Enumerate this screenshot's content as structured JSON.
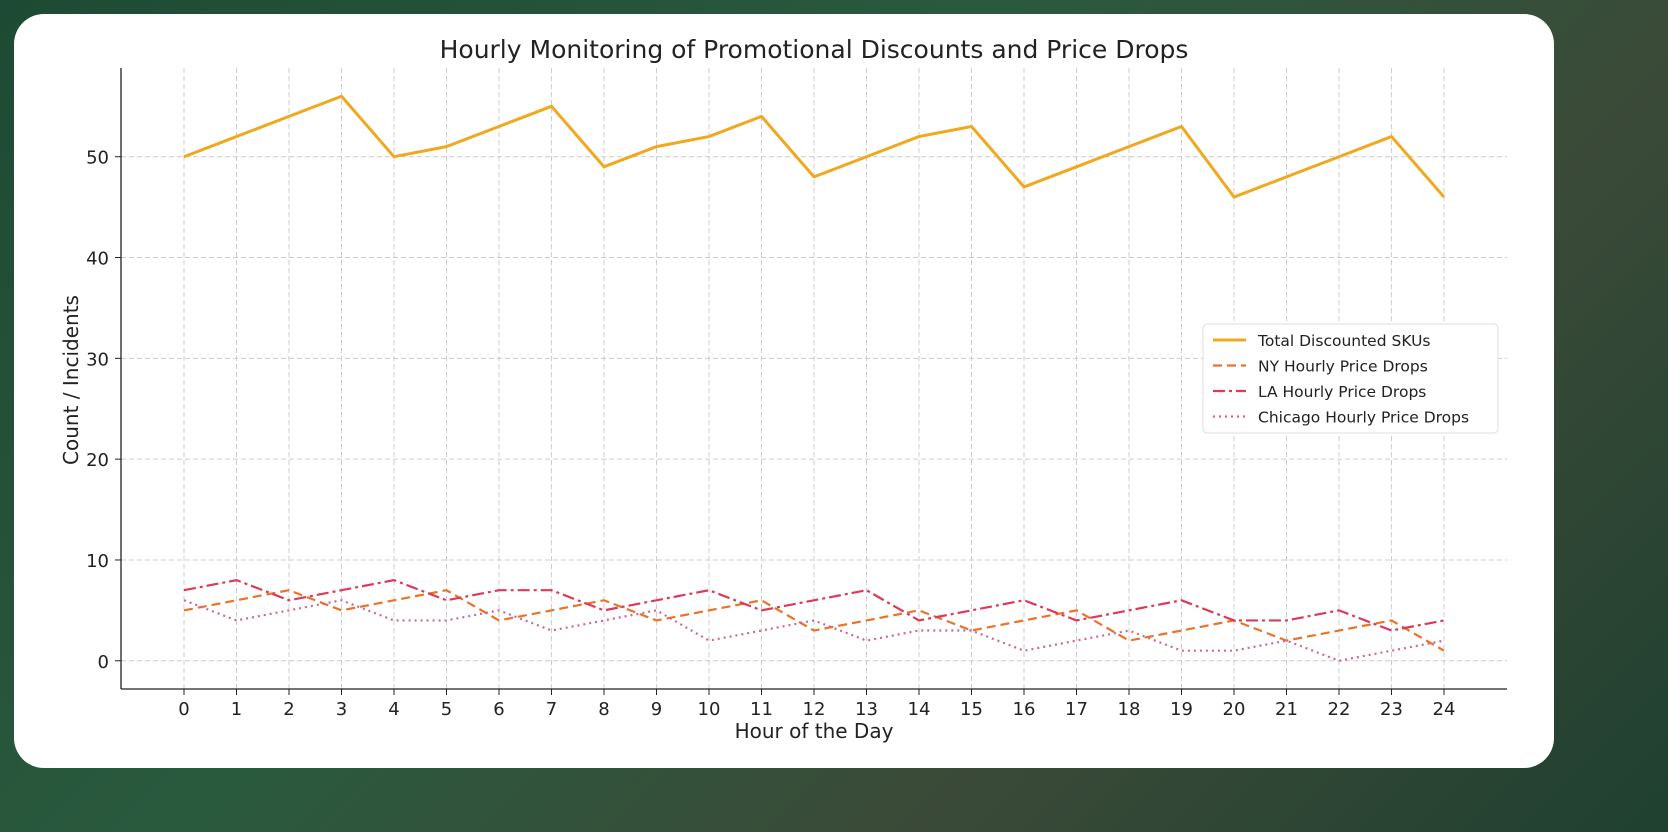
{
  "chart_data": {
    "type": "line",
    "title": "Hourly Monitoring of Promotional Discounts and Price Drops",
    "xlabel": "Hour of the Day",
    "ylabel": "Count / Incidents",
    "x": [
      0,
      1,
      2,
      3,
      4,
      5,
      6,
      7,
      8,
      9,
      10,
      11,
      12,
      13,
      14,
      15,
      16,
      17,
      18,
      19,
      20,
      21,
      22,
      23,
      24
    ],
    "xlim": [
      -1.2,
      25.2
    ],
    "ylim": [
      -2.8,
      58.8
    ],
    "yticks": [
      0,
      10,
      20,
      30,
      40,
      50
    ],
    "grid": true,
    "legend_position": "center-right",
    "series": [
      {
        "name": "Total Discounted SKUs",
        "color": "#f0a81e",
        "style": "solid",
        "values": [
          50,
          52,
          54,
          56,
          50,
          51,
          53,
          55,
          49,
          51,
          52,
          54,
          48,
          50,
          52,
          53,
          47,
          49,
          51,
          53,
          46,
          48,
          50,
          52,
          46
        ]
      },
      {
        "name": "NY Hourly Price Drops",
        "color": "#e8742a",
        "style": "dashed",
        "values": [
          5,
          6,
          7,
          5,
          6,
          7,
          4,
          5,
          6,
          4,
          5,
          6,
          3,
          4,
          5,
          3,
          4,
          5,
          2,
          3,
          4,
          2,
          3,
          4,
          1
        ]
      },
      {
        "name": "LA Hourly Price Drops",
        "color": "#dc3a5a",
        "style": "dashdot",
        "values": [
          7,
          8,
          6,
          7,
          8,
          6,
          7,
          7,
          5,
          6,
          7,
          5,
          6,
          7,
          4,
          5,
          6,
          4,
          5,
          6,
          4,
          4,
          5,
          3,
          4
        ]
      },
      {
        "name": "Chicago Hourly Price Drops",
        "color": "#d0649a",
        "style": "dotted",
        "values": [
          6,
          4,
          5,
          6,
          4,
          4,
          5,
          3,
          4,
          5,
          2,
          3,
          4,
          2,
          3,
          3,
          1,
          2,
          3,
          1,
          1,
          2,
          0,
          1,
          2
        ]
      }
    ]
  }
}
